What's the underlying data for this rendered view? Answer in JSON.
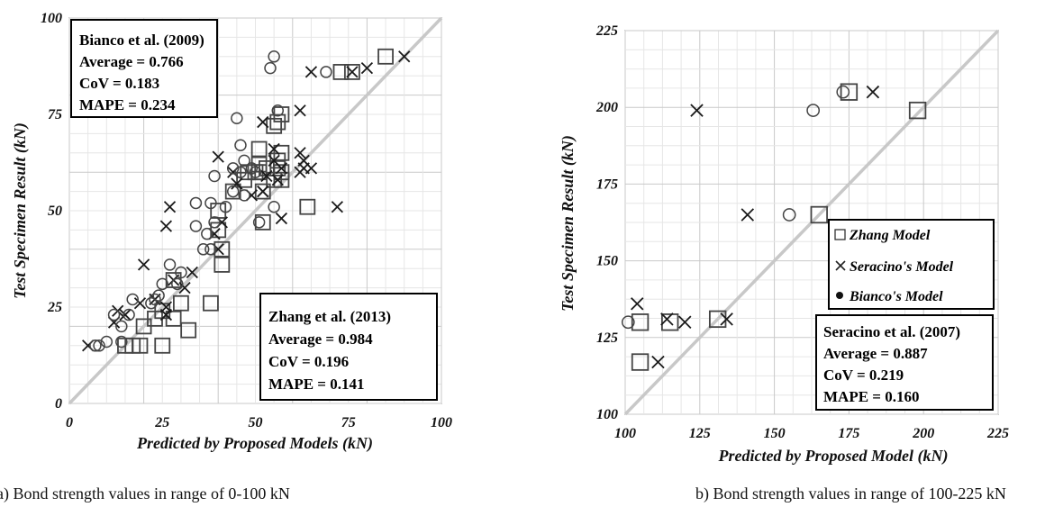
{
  "chart_data": [
    {
      "type": "scatter",
      "caption": "a) Bond strength values in range of 0-100 kN",
      "xlabel": "Predicted by Proposed Models (kN)",
      "ylabel": "Test Specimen Result (kN)",
      "xlim": [
        0,
        100
      ],
      "ylim": [
        0,
        100
      ],
      "xticks": [
        0,
        25,
        50,
        75,
        100
      ],
      "yticks": [
        0,
        25,
        50,
        75,
        100
      ],
      "grid": true,
      "reference_line": "y = x",
      "annotations": [
        {
          "position": "top-left",
          "lines": [
            "Bianco et al. (2009)",
            "Average = 0.766",
            "CoV = 0.183",
            "MAPE = 0.234"
          ]
        },
        {
          "position": "bottom-right",
          "lines": [
            "Zhang et al. (2013)",
            "Average = 0.984",
            "CoV = 0.196",
            "MAPE = 0.141"
          ]
        }
      ],
      "series": [
        {
          "marker": "square",
          "points": [
            [
              85,
              90
            ],
            [
              76,
              86
            ],
            [
              73,
              86
            ],
            [
              57,
              75
            ],
            [
              56,
              73
            ],
            [
              55,
              72
            ],
            [
              57,
              65
            ],
            [
              56,
              63
            ],
            [
              56,
              61
            ],
            [
              57,
              60
            ],
            [
              57,
              58
            ],
            [
              53,
              61
            ],
            [
              55,
              58
            ],
            [
              51,
              66
            ],
            [
              51,
              62
            ],
            [
              51,
              60
            ],
            [
              52,
              55
            ],
            [
              50,
              60
            ],
            [
              52,
              47
            ],
            [
              64,
              51
            ],
            [
              48,
              60
            ],
            [
              47,
              58
            ],
            [
              44,
              55
            ],
            [
              40,
              50
            ],
            [
              40,
              45
            ],
            [
              41,
              40
            ],
            [
              41,
              36
            ],
            [
              38,
              26
            ],
            [
              32,
              19
            ],
            [
              30,
              26
            ],
            [
              28,
              32
            ],
            [
              28,
              22
            ],
            [
              23,
              22
            ],
            [
              25,
              24
            ],
            [
              25,
              15
            ],
            [
              20,
              20
            ],
            [
              19,
              15
            ],
            [
              17,
              15
            ],
            [
              15,
              15
            ]
          ]
        },
        {
          "marker": "x",
          "points": [
            [
              90,
              90
            ],
            [
              80,
              87
            ],
            [
              76,
              86
            ],
            [
              65,
              86
            ],
            [
              62,
              76
            ],
            [
              52,
              73
            ],
            [
              62,
              65
            ],
            [
              63,
              63
            ],
            [
              63,
              61
            ],
            [
              65,
              61
            ],
            [
              62,
              60
            ],
            [
              57,
              61
            ],
            [
              56,
              58
            ],
            [
              57,
              48
            ],
            [
              55,
              66
            ],
            [
              55,
              63
            ],
            [
              53,
              59
            ],
            [
              52,
              55
            ],
            [
              52,
              55
            ],
            [
              49,
              54
            ],
            [
              72,
              51
            ],
            [
              44,
              60
            ],
            [
              40,
              64
            ],
            [
              45,
              57
            ],
            [
              41,
              47
            ],
            [
              39,
              44
            ],
            [
              40,
              40
            ],
            [
              27,
              51
            ],
            [
              26,
              46
            ],
            [
              20,
              36
            ],
            [
              31,
              30
            ],
            [
              28,
              32
            ],
            [
              33,
              34
            ],
            [
              26,
              25
            ],
            [
              26,
              23
            ],
            [
              23,
              27
            ],
            [
              19,
              26
            ],
            [
              15,
              23
            ],
            [
              12,
              21
            ],
            [
              13,
              24
            ],
            [
              5,
              15
            ]
          ]
        },
        {
          "marker": "circle",
          "points": [
            [
              55,
              90
            ],
            [
              54,
              87
            ],
            [
              69,
              86
            ],
            [
              56,
              76
            ],
            [
              45,
              74
            ],
            [
              46,
              67
            ],
            [
              47,
              63
            ],
            [
              46,
              60
            ],
            [
              49,
              61
            ],
            [
              50,
              60
            ],
            [
              44,
              61
            ],
            [
              55,
              51
            ],
            [
              51,
              47
            ],
            [
              44,
              55
            ],
            [
              47,
              54
            ],
            [
              42,
              51
            ],
            [
              34,
              52
            ],
            [
              38,
              52
            ],
            [
              34,
              46
            ],
            [
              39,
              59
            ],
            [
              39,
              47
            ],
            [
              37,
              44
            ],
            [
              38,
              40
            ],
            [
              36,
              40
            ],
            [
              30,
              34
            ],
            [
              29,
              31
            ],
            [
              27,
              36
            ],
            [
              25,
              31
            ],
            [
              24,
              28
            ],
            [
              22,
              26
            ],
            [
              23,
              27
            ],
            [
              17,
              27
            ],
            [
              16,
              23
            ],
            [
              12,
              23
            ],
            [
              14,
              20
            ],
            [
              14,
              16
            ],
            [
              10,
              16
            ],
            [
              7,
              15
            ],
            [
              8,
              15
            ]
          ]
        }
      ]
    },
    {
      "type": "scatter",
      "caption": "b) Bond strength values in range of 100-225 kN",
      "xlabel": "Predicted by Proposed Model (kN)",
      "ylabel": "Test Specimen Result (kN)",
      "xlim": [
        100,
        225
      ],
      "ylim": [
        100,
        225
      ],
      "xticks": [
        100,
        125,
        150,
        175,
        200,
        225
      ],
      "yticks": [
        100,
        125,
        150,
        175,
        200,
        225
      ],
      "grid": true,
      "reference_line": "y = x",
      "legend": {
        "position": "right",
        "entries": [
          "Zhang Model",
          "Seracino's Model",
          "Bianco's Model"
        ]
      },
      "annotations": [
        {
          "position": "bottom-right",
          "lines": [
            "Seracino et al. (2007)",
            "Average = 0.887",
            "CoV = 0.219",
            "MAPE = 0.160"
          ]
        }
      ],
      "series": [
        {
          "name": "Zhang Model",
          "marker": "square",
          "points": [
            [
              175,
              205
            ],
            [
              198,
              199
            ],
            [
              165,
              165
            ],
            [
              131,
              131
            ],
            [
              115,
              130
            ],
            [
              105,
              130
            ],
            [
              105,
              117
            ]
          ]
        },
        {
          "name": "Seracino's Model",
          "marker": "x",
          "points": [
            [
              183,
              205
            ],
            [
              124,
              199
            ],
            [
              141,
              165
            ],
            [
              134,
              131
            ],
            [
              120,
              130
            ],
            [
              114,
              131
            ],
            [
              104,
              136
            ],
            [
              111,
              117
            ]
          ]
        },
        {
          "name": "Bianco's Model",
          "marker": "circle",
          "points": [
            [
              173,
              205
            ],
            [
              163,
              199
            ],
            [
              155,
              165
            ],
            [
              101,
              130
            ]
          ]
        }
      ]
    }
  ]
}
